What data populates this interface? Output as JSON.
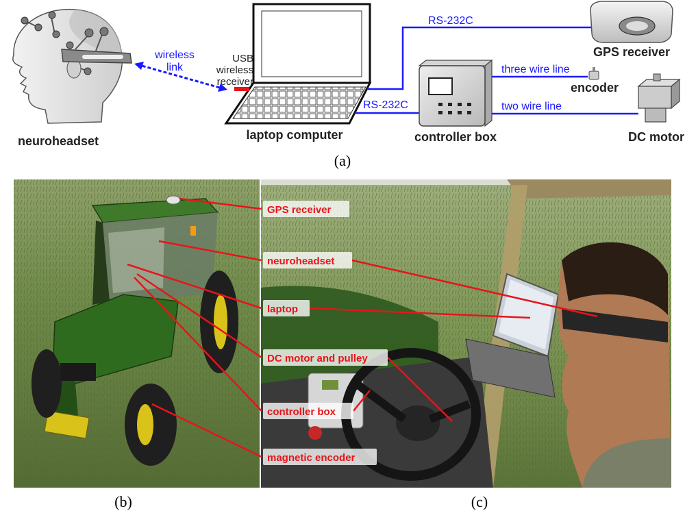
{
  "panel_a": {
    "caption": "(a)",
    "devices": {
      "neuroheadset": "neuroheadset",
      "laptop": "laptop computer",
      "controller": "controller box",
      "gps": "GPS receiver",
      "encoder": "encoder",
      "motor": "DC motor"
    },
    "links": {
      "wireless_1": "wireless",
      "wireless_2": "link",
      "usb_1": "USB",
      "usb_2": "wireless",
      "usb_3": "receiver",
      "rs232_top": "RS-232C",
      "rs232_mid": "RS-232C",
      "three_wire": "three wire line",
      "two_wire": "two wire line"
    }
  },
  "panel_b": {
    "caption": "(b)"
  },
  "panel_c": {
    "caption": "(c)"
  },
  "callouts": {
    "gps": "GPS receiver",
    "neuroheadset": "neuroheadset",
    "laptop": "laptop",
    "motor": "DC motor and pulley",
    "controller": "controller box",
    "encoder": "magnetic encoder"
  },
  "colors": {
    "link_blue": "#1a1aff",
    "callout_red": "#e8141a",
    "tractor_green": "#2f6b1f",
    "tractor_yellow": "#d9c21a"
  }
}
